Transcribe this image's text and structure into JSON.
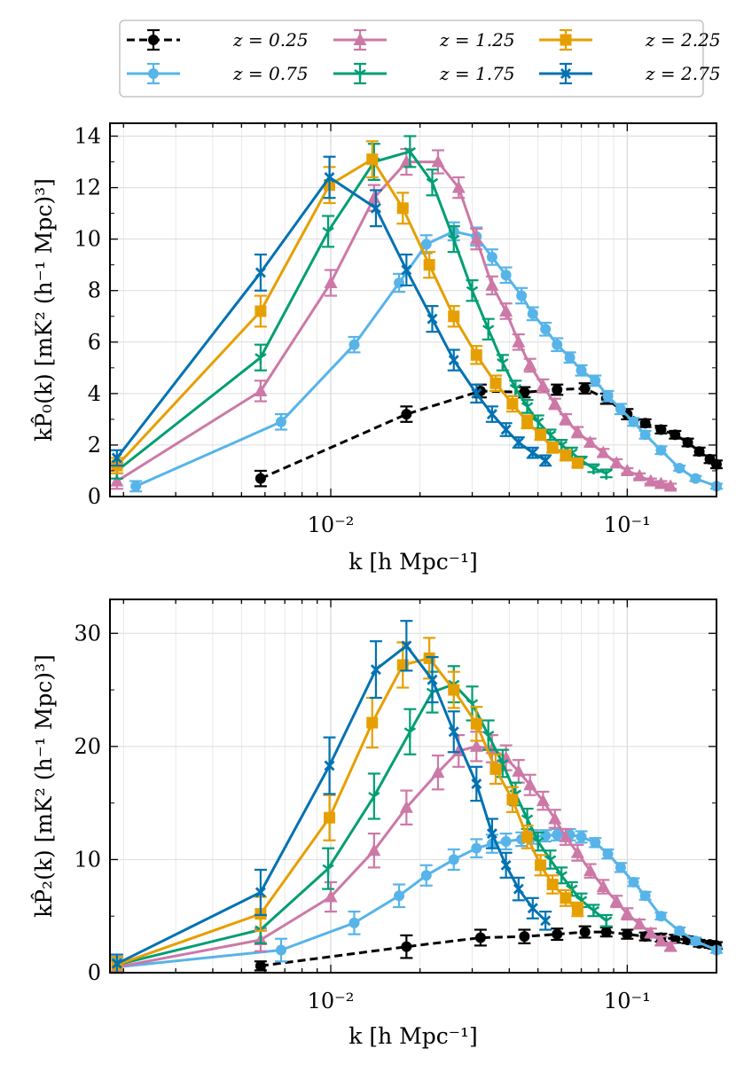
{
  "chart_data": [
    {
      "type": "line",
      "ylabel": "kP̂₀(k) [mK² (h⁻¹ Mpc)³]",
      "xlabel": "k [h Mpc⁻¹]",
      "xscale": "log",
      "xlim": [
        0.0018,
        0.2
      ],
      "ylim": [
        0,
        14.5
      ],
      "yticks": [
        0,
        2,
        4,
        6,
        8,
        10,
        12,
        14
      ],
      "xticks": [
        {
          "value": 0.01,
          "label": "10⁻²"
        },
        {
          "value": 0.1,
          "label": "10⁻¹"
        }
      ],
      "grid": true,
      "series": [
        {
          "name": "z = 0.25",
          "color": "#000000",
          "marker": "circle",
          "dashed": true,
          "x": [
            0.0058,
            0.018,
            0.032,
            0.045,
            0.058,
            0.072,
            0.085,
            0.1,
            0.115,
            0.13,
            0.145,
            0.16,
            0.175,
            0.19,
            0.2
          ],
          "y": [
            0.7,
            3.2,
            4.1,
            4.05,
            4.15,
            4.2,
            3.8,
            3.2,
            2.85,
            2.6,
            2.4,
            2.1,
            1.75,
            1.45,
            1.25
          ],
          "err": [
            0.3,
            0.3,
            0.25,
            0.2,
            0.2,
            0.2,
            0.2,
            0.2,
            0.15,
            0.15,
            0.15,
            0.15,
            0.15,
            0.15,
            0.15
          ]
        },
        {
          "name": "z = 0.75",
          "color": "#56b4e9",
          "marker": "circle",
          "dashed": false,
          "x": [
            0.0022,
            0.0068,
            0.012,
            0.017,
            0.021,
            0.026,
            0.031,
            0.035,
            0.039,
            0.044,
            0.048,
            0.053,
            0.058,
            0.064,
            0.07,
            0.078,
            0.086,
            0.095,
            0.105,
            0.115,
            0.13,
            0.15,
            0.17,
            0.2
          ],
          "y": [
            0.4,
            2.9,
            5.9,
            8.3,
            9.8,
            10.3,
            10.1,
            9.3,
            8.6,
            7.8,
            7.1,
            6.5,
            5.9,
            5.4,
            4.9,
            4.5,
            3.9,
            3.4,
            2.9,
            2.4,
            1.8,
            1.1,
            0.7,
            0.4
          ],
          "err": [
            0.2,
            0.3,
            0.3,
            0.35,
            0.35,
            0.35,
            0.35,
            0.3,
            0.3,
            0.3,
            0.25,
            0.25,
            0.25,
            0.2,
            0.2,
            0.2,
            0.2,
            0.2,
            0.15,
            0.15,
            0.15,
            0.1,
            0.1,
            0.1
          ]
        },
        {
          "name": "z = 1.25",
          "color": "#cc79a7",
          "marker": "triangle",
          "dashed": false,
          "x": [
            0.0019,
            0.0058,
            0.01,
            0.014,
            0.018,
            0.023,
            0.027,
            0.031,
            0.035,
            0.039,
            0.043,
            0.047,
            0.052,
            0.057,
            0.062,
            0.068,
            0.075,
            0.083,
            0.092,
            0.1,
            0.11,
            0.12,
            0.13,
            0.14
          ],
          "y": [
            0.6,
            4.1,
            8.3,
            11.6,
            13.0,
            13.0,
            12.0,
            10.0,
            8.2,
            7.2,
            6.0,
            5.1,
            4.3,
            3.6,
            3.0,
            2.5,
            2.1,
            1.7,
            1.3,
            1.0,
            0.8,
            0.6,
            0.5,
            0.4
          ],
          "err": [
            0.3,
            0.4,
            0.5,
            0.5,
            0.5,
            0.45,
            0.4,
            0.4,
            0.35,
            0.3,
            0.3,
            0.25,
            0.25,
            0.2,
            0.2,
            0.2,
            0.15,
            0.15,
            0.15,
            0.1,
            0.1,
            0.1,
            0.1,
            0.1
          ]
        },
        {
          "name": "z = 1.75",
          "color": "#009e73",
          "marker": "tri_down",
          "dashed": false,
          "x": [
            0.0019,
            0.0058,
            0.0098,
            0.014,
            0.0185,
            0.022,
            0.026,
            0.03,
            0.034,
            0.038,
            0.042,
            0.046,
            0.05,
            0.055,
            0.06,
            0.065,
            0.07,
            0.077,
            0.085
          ],
          "y": [
            1.0,
            5.4,
            10.3,
            13.0,
            13.4,
            12.2,
            10.0,
            8.0,
            6.5,
            5.2,
            4.2,
            3.5,
            2.9,
            2.4,
            2.0,
            1.7,
            1.4,
            1.1,
            0.9
          ],
          "err": [
            0.3,
            0.5,
            0.6,
            0.7,
            0.6,
            0.5,
            0.5,
            0.4,
            0.4,
            0.3,
            0.3,
            0.25,
            0.25,
            0.2,
            0.2,
            0.2,
            0.15,
            0.15,
            0.15
          ]
        },
        {
          "name": "z = 2.25",
          "color": "#e69f00",
          "marker": "square",
          "dashed": false,
          "x": [
            0.0019,
            0.0058,
            0.0099,
            0.0138,
            0.0175,
            0.0215,
            0.026,
            0.031,
            0.036,
            0.041,
            0.046,
            0.051,
            0.056,
            0.062,
            0.068
          ],
          "y": [
            1.2,
            7.2,
            12.1,
            13.1,
            11.2,
            9.0,
            7.0,
            5.5,
            4.4,
            3.6,
            2.9,
            2.4,
            1.9,
            1.6,
            1.3
          ],
          "err": [
            0.3,
            0.6,
            0.7,
            0.7,
            0.6,
            0.5,
            0.4,
            0.35,
            0.3,
            0.3,
            0.25,
            0.2,
            0.2,
            0.2,
            0.15
          ]
        },
        {
          "name": "z = 2.75",
          "color": "#0072b2",
          "marker": "x",
          "dashed": false,
          "x": [
            0.0019,
            0.0058,
            0.0099,
            0.0142,
            0.018,
            0.022,
            0.026,
            0.031,
            0.035,
            0.039,
            0.043,
            0.048,
            0.053
          ],
          "y": [
            1.5,
            8.7,
            12.4,
            11.2,
            8.8,
            6.9,
            5.3,
            4.0,
            3.2,
            2.6,
            2.1,
            1.7,
            1.4
          ],
          "err": [
            0.3,
            0.7,
            0.8,
            0.7,
            0.6,
            0.5,
            0.4,
            0.35,
            0.3,
            0.25,
            0.2,
            0.2,
            0.2
          ]
        }
      ]
    },
    {
      "type": "line",
      "ylabel": "kP̂₂(k) [mK² (h⁻¹ Mpc)³]",
      "xlabel": "k [h Mpc⁻¹]",
      "xscale": "log",
      "xlim": [
        0.0018,
        0.2
      ],
      "ylim": [
        0,
        33
      ],
      "yticks": [
        0,
        10,
        20,
        30
      ],
      "xticks": [
        {
          "value": 0.01,
          "label": "10⁻²"
        },
        {
          "value": 0.1,
          "label": "10⁻¹"
        }
      ],
      "grid": true,
      "series": [
        {
          "name": "z = 0.25",
          "color": "#000000",
          "marker": "circle",
          "dashed": true,
          "x": [
            0.0058,
            0.018,
            0.032,
            0.045,
            0.058,
            0.072,
            0.085,
            0.1,
            0.115,
            0.13,
            0.145,
            0.16,
            0.175,
            0.19,
            0.2
          ],
          "y": [
            0.6,
            2.3,
            3.1,
            3.2,
            3.4,
            3.6,
            3.6,
            3.4,
            3.2,
            3.1,
            3.0,
            2.9,
            2.6,
            2.5,
            2.4
          ],
          "err": [
            0.4,
            1.0,
            0.7,
            0.6,
            0.5,
            0.5,
            0.4,
            0.4,
            0.35,
            0.35,
            0.35,
            0.3,
            0.3,
            0.3,
            0.3
          ]
        },
        {
          "name": "z = 0.75",
          "color": "#56b4e9",
          "marker": "circle",
          "dashed": false,
          "x": [
            0.0019,
            0.0068,
            0.012,
            0.017,
            0.021,
            0.026,
            0.031,
            0.035,
            0.039,
            0.044,
            0.048,
            0.053,
            0.058,
            0.064,
            0.07,
            0.078,
            0.086,
            0.095,
            0.105,
            0.115,
            0.13,
            0.15,
            0.17,
            0.2
          ],
          "y": [
            0.5,
            2.0,
            4.4,
            6.8,
            8.6,
            10.0,
            11.0,
            11.4,
            11.6,
            11.8,
            12.0,
            12.1,
            12.2,
            12.2,
            12.0,
            11.5,
            10.5,
            9.3,
            8.0,
            6.8,
            5.0,
            3.7,
            2.8,
            2.0
          ],
          "err": [
            0.8,
            1.0,
            1.0,
            1.0,
            0.9,
            0.9,
            0.8,
            0.8,
            0.7,
            0.6,
            0.6,
            0.5,
            0.5,
            0.5,
            0.5,
            0.4,
            0.4,
            0.4,
            0.35,
            0.35,
            0.3,
            0.3,
            0.3,
            0.25
          ]
        },
        {
          "name": "z = 1.25",
          "color": "#cc79a7",
          "marker": "triangle",
          "dashed": false,
          "x": [
            0.0019,
            0.0058,
            0.01,
            0.014,
            0.018,
            0.023,
            0.027,
            0.031,
            0.035,
            0.039,
            0.043,
            0.047,
            0.052,
            0.057,
            0.062,
            0.068,
            0.075,
            0.083,
            0.092,
            0.1,
            0.11,
            0.12,
            0.13,
            0.14
          ],
          "y": [
            0.5,
            2.9,
            6.7,
            10.8,
            14.6,
            17.7,
            19.6,
            20.0,
            19.8,
            19.0,
            17.8,
            16.6,
            15.2,
            13.6,
            12.0,
            10.6,
            9.0,
            7.6,
            6.3,
            5.2,
            4.3,
            3.5,
            2.8,
            2.3
          ],
          "err": [
            0.6,
            1.0,
            1.3,
            1.5,
            1.5,
            1.5,
            1.4,
            1.3,
            1.2,
            1.1,
            1.0,
            0.9,
            0.8,
            0.8,
            0.7,
            0.7,
            0.6,
            0.6,
            0.5,
            0.5,
            0.4,
            0.4,
            0.4,
            0.35
          ]
        },
        {
          "name": "z = 1.75",
          "color": "#009e73",
          "marker": "tri_down",
          "dashed": false,
          "x": [
            0.0019,
            0.0058,
            0.0098,
            0.014,
            0.0185,
            0.022,
            0.026,
            0.03,
            0.034,
            0.038,
            0.042,
            0.046,
            0.05,
            0.055,
            0.06,
            0.065,
            0.07,
            0.077,
            0.085
          ],
          "y": [
            0.7,
            3.8,
            9.2,
            15.6,
            21.3,
            24.8,
            25.5,
            23.8,
            21.0,
            18.5,
            15.8,
            13.6,
            11.6,
            10.0,
            8.6,
            7.4,
            6.4,
            5.5,
            4.6
          ],
          "err": [
            0.7,
            1.2,
            1.8,
            2.0,
            2.0,
            1.8,
            1.6,
            1.5,
            1.3,
            1.2,
            1.0,
            0.9,
            0.8,
            0.8,
            0.7,
            0.6,
            0.6,
            0.5,
            0.5
          ]
        },
        {
          "name": "z = 2.25",
          "color": "#e69f00",
          "marker": "square",
          "dashed": false,
          "x": [
            0.0019,
            0.0058,
            0.0099,
            0.0138,
            0.0175,
            0.0215,
            0.026,
            0.031,
            0.036,
            0.041,
            0.046,
            0.051,
            0.056,
            0.062,
            0.068
          ],
          "y": [
            0.7,
            5.2,
            13.7,
            22.1,
            27.2,
            27.8,
            25.0,
            22.0,
            18.0,
            15.3,
            12.0,
            9.5,
            7.8,
            6.6,
            5.6
          ],
          "err": [
            0.7,
            1.5,
            2.0,
            2.2,
            2.0,
            1.8,
            1.6,
            1.5,
            1.3,
            1.1,
            1.0,
            0.9,
            0.8,
            0.7,
            0.6
          ]
        },
        {
          "name": "z = 2.75",
          "color": "#0072b2",
          "marker": "x",
          "dashed": false,
          "x": [
            0.0019,
            0.0058,
            0.0099,
            0.0142,
            0.018,
            0.022,
            0.026,
            0.031,
            0.035,
            0.039,
            0.043,
            0.048,
            0.053
          ],
          "y": [
            0.8,
            7.1,
            18.3,
            26.8,
            28.9,
            25.9,
            21.3,
            16.7,
            12.3,
            9.5,
            7.4,
            5.7,
            4.6
          ],
          "err": [
            0.8,
            2.0,
            2.5,
            2.5,
            2.2,
            2.0,
            1.8,
            1.5,
            1.3,
            1.1,
            1.0,
            0.9,
            0.8
          ]
        }
      ]
    }
  ],
  "legend": {
    "placement": "top",
    "entries": [
      "z = 0.25",
      "z = 0.75",
      "z = 1.25",
      "z = 1.75",
      "z = 2.25",
      "z = 2.75"
    ]
  }
}
